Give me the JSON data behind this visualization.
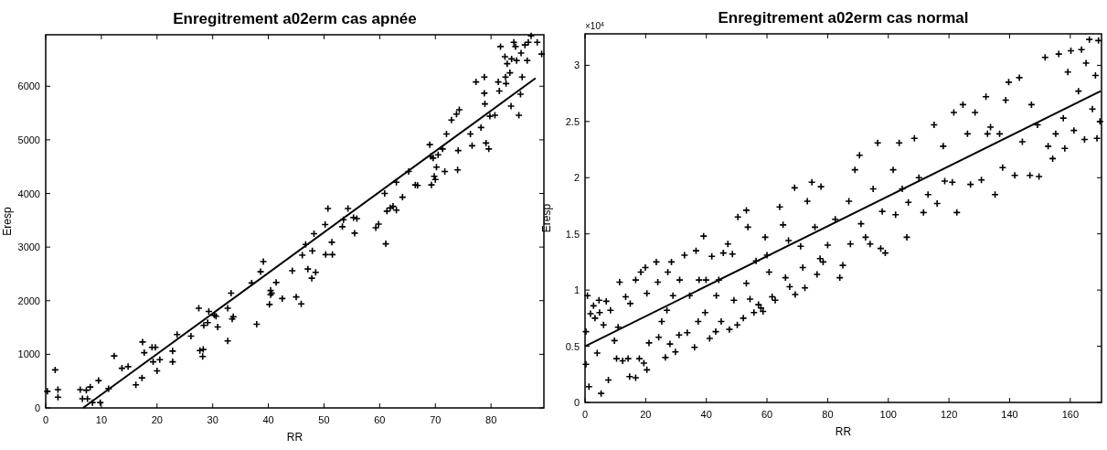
{
  "chart_data": [
    {
      "type": "scatter",
      "title": "Enregitrement a02erm cas apnée",
      "xlabel": "RR",
      "ylabel": "Eresp",
      "xlim": [
        0,
        89.5
      ],
      "ylim": [
        0,
        6960
      ],
      "xticks": [
        0,
        10,
        20,
        30,
        40,
        50,
        60,
        70,
        80
      ],
      "yticks": [
        0,
        1000,
        2000,
        3000,
        4000,
        5000,
        6000
      ],
      "grid": false,
      "series": [
        {
          "color": "#000000",
          "marker": "cross",
          "x": [
            0.3,
            1.7,
            2.2,
            2.2,
            6.2,
            6.6,
            7.3,
            7.5,
            8,
            8.4,
            9.5,
            9.8,
            11.3,
            12.3,
            13.7,
            14.8,
            16.2,
            17.3,
            17.4,
            17.7,
            19.3,
            19.1,
            19.7,
            20,
            20.5,
            22.8,
            22.8,
            23.6,
            26.1,
            27.5,
            27.7,
            28.2,
            28.3,
            28.4,
            29.1,
            29.3,
            30.3,
            30.6,
            30.9,
            32.7,
            32.7,
            33.3,
            33.5,
            33.7,
            37,
            37.9,
            38.6,
            39.1,
            40.2,
            40.4,
            40.6,
            40.4,
            41.4,
            42.5,
            44.3,
            45,
            45.9,
            46.1,
            46.7,
            47.1,
            47.8,
            47.9,
            48.2,
            48.5,
            50.2,
            50.3,
            50.7,
            51.4,
            51.5,
            53.3,
            53.5,
            54.3,
            55.3,
            55.5,
            55.9,
            59.3,
            59.8,
            60.9,
            61.1,
            61.3,
            61.9,
            62.4,
            63,
            63,
            64.1,
            65.2,
            66.4,
            66.8,
            69,
            69.2,
            69.3,
            69.6,
            69.8,
            70,
            70.2,
            70.5,
            71.3,
            71.7,
            72,
            72.9,
            73.8,
            74,
            74.1,
            74.3,
            76.3,
            76.6,
            77.3,
            78.2,
            78.8,
            78.8,
            78.9,
            79.1,
            79.6,
            79.8,
            80.7,
            81.3,
            81.5,
            81.7,
            82.5,
            82.6,
            82.7,
            82.9,
            83.4,
            83.6,
            83.7,
            84.1,
            84.4,
            84.6,
            85,
            85.3,
            85.6,
            85.4,
            86.1,
            86.5,
            86.7,
            87.2,
            88.3,
            89.1
          ],
          "values": [
            310,
            710,
            340,
            200,
            340,
            170,
            330,
            170,
            390,
            100,
            510,
            100,
            360,
            970,
            740,
            770,
            430,
            560,
            1230,
            1030,
            860,
            1130,
            1130,
            690,
            900,
            1060,
            860,
            1370,
            1340,
            1860,
            1070,
            960,
            1090,
            1540,
            1590,
            1800,
            1730,
            1710,
            1510,
            1860,
            1250,
            2140,
            1660,
            1700,
            2330,
            1560,
            2540,
            2730,
            1930,
            2190,
            2140,
            2110,
            2340,
            2040,
            2560,
            2070,
            1940,
            2850,
            3050,
            2590,
            2420,
            2930,
            3250,
            2530,
            3420,
            2860,
            3720,
            3090,
            2860,
            3380,
            3510,
            3720,
            3550,
            3260,
            3530,
            3360,
            3430,
            4000,
            3060,
            3670,
            3730,
            3760,
            3690,
            4210,
            3930,
            4410,
            4160,
            4150,
            4910,
            4690,
            4160,
            4660,
            4320,
            4260,
            4490,
            4720,
            4830,
            4410,
            5110,
            5370,
            5480,
            4440,
            4800,
            5560,
            5110,
            4890,
            6080,
            5230,
            6170,
            5870,
            5670,
            4940,
            4830,
            5440,
            5460,
            6080,
            5910,
            6740,
            6550,
            6170,
            6050,
            6420,
            6250,
            5630,
            6510,
            6820,
            6740,
            6480,
            5460,
            5850,
            6170,
            6620,
            6770,
            6480,
            6820,
            6940,
            6820,
            6600
          ]
        },
        {
          "type": "line",
          "color": "#000000",
          "x": [
            6.7,
            88
          ],
          "values": [
            0,
            6150
          ]
        }
      ]
    },
    {
      "type": "scatter",
      "title": "Enregitrement a02erm cas normal",
      "xlabel": "RR",
      "ylabel": "Eresp",
      "annotations": [
        "×10$^{4}$"
      ],
      "xlim": [
        0,
        170.3
      ],
      "ylim": [
        0,
        3.28
      ],
      "xticks": [
        0,
        20,
        40,
        60,
        80,
        100,
        120,
        140,
        160
      ],
      "yticks": [
        0,
        0.5,
        1,
        1.5,
        2,
        2.5,
        3
      ],
      "grid": false,
      "series": [
        {
          "color": "#000000",
          "marker": "cross",
          "x": [
            0.3,
            0.3,
            0.8,
            1.3,
            1.8,
            2.8,
            3.3,
            4,
            4.6,
            4.8,
            5.3,
            6.1,
            7,
            7.7,
            8.4,
            9.7,
            10.9,
            11.4,
            10.4,
            12.4,
            13.4,
            14.2,
            14.7,
            14.9,
            16.7,
            16.7,
            17.9,
            18.4,
            19.4,
            19.9,
            20.4,
            20.4,
            21.1,
            23.5,
            24,
            24.3,
            25.3,
            26.5,
            27,
            27.3,
            28,
            28.5,
            29,
            29.8,
            31,
            31.2,
            32.8,
            33.7,
            34.5,
            36.1,
            36.6,
            37.3,
            37.6,
            39.1,
            39.6,
            39.9,
            41.1,
            41.8,
            43.1,
            43.3,
            44.1,
            44.9,
            45.6,
            47.1,
            47.6,
            48.6,
            49.1,
            50.2,
            50.4,
            52.2,
            53.2,
            53.7,
            53.2,
            54.4,
            55.7,
            56.4,
            57.2,
            58,
            58.7,
            59.4,
            60,
            60.7,
            61.7,
            62.7,
            64.2,
            65.3,
            66.1,
            67.1,
            67.5,
            69.1,
            69.3,
            71.1,
            71.8,
            72.5,
            73.3,
            74.8,
            75.8,
            76.5,
            77.8,
            77.5,
            78.5,
            80,
            82.5,
            84,
            85,
            87,
            87.5,
            89,
            90.5,
            91,
            92.5,
            94,
            95,
            96.5,
            97.5,
            98,
            99,
            101.6,
            102.4,
            103.6,
            104.6,
            106.1,
            106.6,
            108.6,
            110.1,
            111.6,
            113.1,
            115.1,
            116.1,
            118.1,
            118.6,
            121.1,
            121.6,
            122.6,
            124.6,
            126.1,
            127.1,
            128.6,
            130.7,
            132.2,
            132.7,
            133.7,
            135.2,
            136.7,
            137.7,
            138.7,
            139.7,
            141.7,
            143.2,
            144.2,
            146.7,
            147.2,
            149.2,
            149.7,
            151.7,
            152.7,
            154.2,
            155.2,
            156.2,
            157.7,
            158.2,
            159.2,
            160.2,
            161.2,
            162.7,
            163.7,
            164.7,
            165.2,
            166.3,
            167.3,
            168.3,
            168.8,
            169.3,
            169.8
          ],
          "values": [
            0.34,
            0.63,
            0.95,
            0.14,
            0.79,
            0.86,
            0.75,
            0.44,
            0.91,
            0.8,
            0.08,
            0.69,
            0.9,
            0.2,
            0.82,
            0.55,
            0.67,
            1.07,
            0.39,
            0.37,
            0.94,
            0.39,
            0.23,
            0.88,
            0.22,
            1.09,
            0.39,
            1.16,
            0.35,
            1.2,
            0.29,
            0.97,
            0.53,
            1.25,
            1.07,
            0.58,
            0.72,
            0.4,
            0.82,
            1.16,
            0.52,
            1.25,
            0.95,
            0.45,
            0.6,
            1.09,
            1.31,
            0.62,
            0.95,
            0.49,
            1.35,
            0.72,
            1.09,
            1.48,
            0.8,
            1.09,
            0.57,
            1.3,
            0.63,
            0.95,
            1.09,
            0.72,
            1.33,
            1.41,
            0.65,
            1.32,
            0.91,
            0.69,
            1.65,
            0.75,
            1.71,
            1.56,
            1.06,
            0.92,
            0.8,
            1.26,
            0.87,
            0.84,
            0.81,
            1.47,
            1.31,
            1.16,
            0.94,
            0.91,
            1.74,
            1.58,
            1.11,
            1.44,
            1.03,
            1.91,
            0.96,
            1.39,
            1.2,
            1.02,
            1.79,
            1.96,
            1.56,
            1.14,
            1.92,
            1.28,
            1.25,
            1.4,
            1.63,
            1.11,
            1.22,
            1.79,
            1.41,
            2.07,
            2.2,
            1.59,
            1.47,
            1.41,
            1.9,
            2.31,
            1.37,
            1.7,
            1.33,
            2.07,
            1.67,
            2.31,
            1.9,
            1.47,
            1.78,
            2.35,
            2,
            1.69,
            1.85,
            2.47,
            1.77,
            2.28,
            1.97,
            1.96,
            2.58,
            1.69,
            2.65,
            2.39,
            1.94,
            2.58,
            1.98,
            2.72,
            2.39,
            2.45,
            1.85,
            2.39,
            2.09,
            2.69,
            2.85,
            2.02,
            2.89,
            2.32,
            2.02,
            2.65,
            2.47,
            2.01,
            3.07,
            2.28,
            2.17,
            2.39,
            3.1,
            2.53,
            2.26,
            2.94,
            3.13,
            2.42,
            2.77,
            3.14,
            2.34,
            3.02,
            3.23,
            2.61,
            2.91,
            2.35,
            3.22,
            2.5
          ]
        },
        {
          "type": "line",
          "color": "#000000",
          "x": [
            0,
            170
          ],
          "values": [
            0.5,
            2.77
          ]
        }
      ]
    }
  ]
}
